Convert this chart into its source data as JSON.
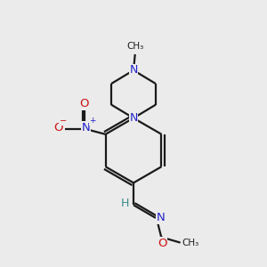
{
  "background_color": "#ebebeb",
  "bond_color": "#1a1a1a",
  "n_color": "#2222cc",
  "o_color": "#cc1111",
  "teal_color": "#3a8a8a",
  "line_width": 1.6,
  "fig_size": [
    3.0,
    3.0
  ],
  "dpi": 100,
  "xlim": [
    1.5,
    8.5
  ],
  "ylim": [
    0.5,
    9.0
  ]
}
